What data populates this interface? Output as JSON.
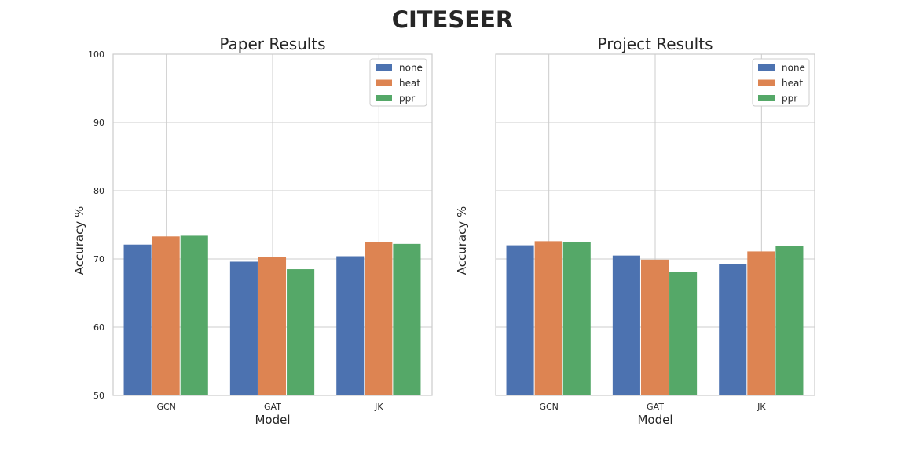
{
  "suptitle": "CITESEER",
  "colors": {
    "none": "#4c72b0",
    "heat": "#dd8452",
    "ppr": "#55a868",
    "grid": "#cccccc",
    "spine": "#cccccc"
  },
  "chart_data": [
    {
      "type": "bar",
      "title": "Paper Results",
      "xlabel": "Model",
      "ylabel": "Accuracy %",
      "ylim": [
        50,
        100
      ],
      "yticks": [
        50,
        60,
        70,
        80,
        90,
        100
      ],
      "show_ytick_labels": true,
      "grid": true,
      "legend": "top-right",
      "categories": [
        "GCN",
        "GAT",
        "JK"
      ],
      "series": [
        {
          "name": "none",
          "values": [
            72.1,
            69.6,
            70.4
          ]
        },
        {
          "name": "heat",
          "values": [
            73.3,
            70.3,
            72.5
          ]
        },
        {
          "name": "ppr",
          "values": [
            73.4,
            68.5,
            72.2
          ]
        }
      ]
    },
    {
      "type": "bar",
      "title": "Project Results",
      "xlabel": "Model",
      "ylabel": "Accuracy %",
      "ylim": [
        50,
        100
      ],
      "yticks": [
        50,
        60,
        70,
        80,
        90,
        100
      ],
      "show_ytick_labels": false,
      "grid": true,
      "legend": "top-right",
      "categories": [
        "GCN",
        "GAT",
        "JK"
      ],
      "series": [
        {
          "name": "none",
          "values": [
            72.0,
            70.5,
            69.3
          ]
        },
        {
          "name": "heat",
          "values": [
            72.6,
            69.9,
            71.1
          ]
        },
        {
          "name": "ppr",
          "values": [
            72.5,
            68.1,
            71.9
          ]
        }
      ]
    }
  ]
}
